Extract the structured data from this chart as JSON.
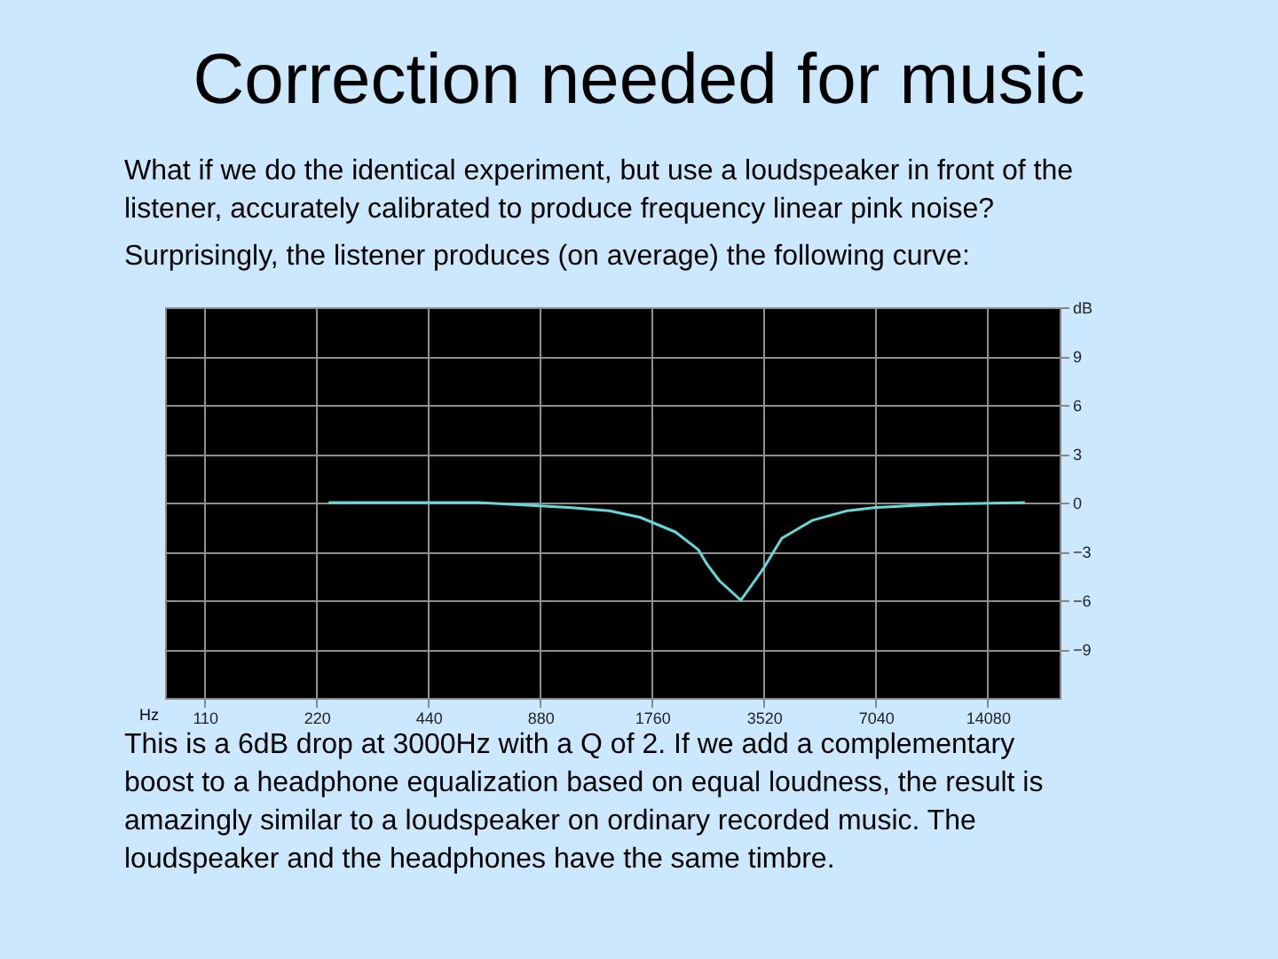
{
  "chart_data": {
    "type": "line",
    "title": "Correction needed for music",
    "annotations": [
      "What if we do the identical experiment, but use a loudspeaker in front of the\nlistener, accurately calibrated to produce frequency linear pink noise?",
      "Surprisingly, the listener produces (on average) the following curve:",
      "This is a 6dB drop at 3000Hz with a Q of 2.  If we add a complementary\nboost to a headphone equalization based on equal loudness, the result is\namazingly similar to a loudspeaker on ordinary recorded music.  The\nloudspeaker and the headphones have the same timbre."
    ],
    "xlabel": "Hz",
    "x": [
      237,
      600,
      1050,
      1350,
      1630,
      2030,
      2345,
      2475,
      2670,
      3050,
      3520,
      3930,
      4740,
      5900,
      7040,
      10570,
      17740
    ],
    "series": [
      {
        "color": "#66d9d9",
        "values": [
          0,
          0,
          -0.3,
          -0.5,
          -0.9,
          -1.8,
          -2.9,
          -3.8,
          -4.8,
          -6,
          -4,
          -2.2,
          -1.1,
          -0.5,
          -0.3,
          -0.1,
          0
        ]
      }
    ],
    "log": "x",
    "xlim": [
      86,
      22000
    ],
    "xticks": [
      110,
      220,
      440,
      880,
      1760,
      3520,
      7040,
      14080
    ],
    "ylim": [
      -12,
      12
    ],
    "yticks": [
      -9,
      -6,
      -3,
      0,
      3,
      6,
      9,
      {
        "value": 12,
        "label": "dB"
      }
    ],
    "grid": true,
    "legend": false
  }
}
